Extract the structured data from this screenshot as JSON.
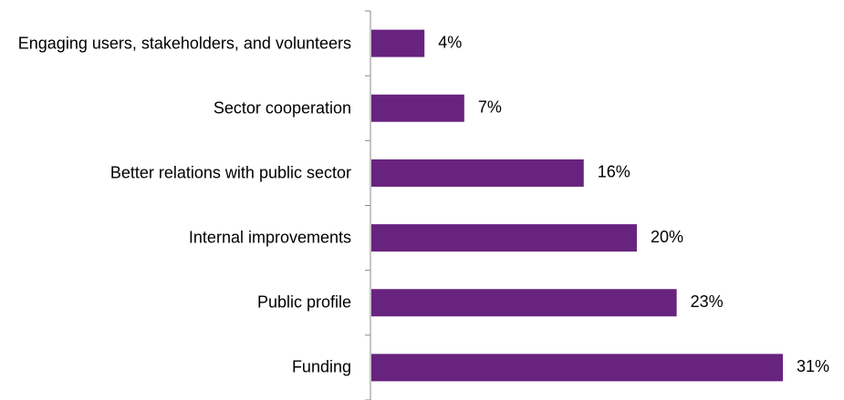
{
  "chart_data": {
    "type": "bar",
    "orientation": "horizontal",
    "categories": [
      "Engaging users, stakeholders, and volunteers",
      "Sector cooperation",
      "Better relations with public sector",
      "Internal improvements",
      "Public profile",
      "Funding"
    ],
    "values": [
      4,
      7,
      16,
      20,
      23,
      31
    ],
    "value_labels": [
      "4%",
      "7%",
      "16%",
      "20%",
      "23%",
      "31%"
    ],
    "color": "#68237f"
  }
}
